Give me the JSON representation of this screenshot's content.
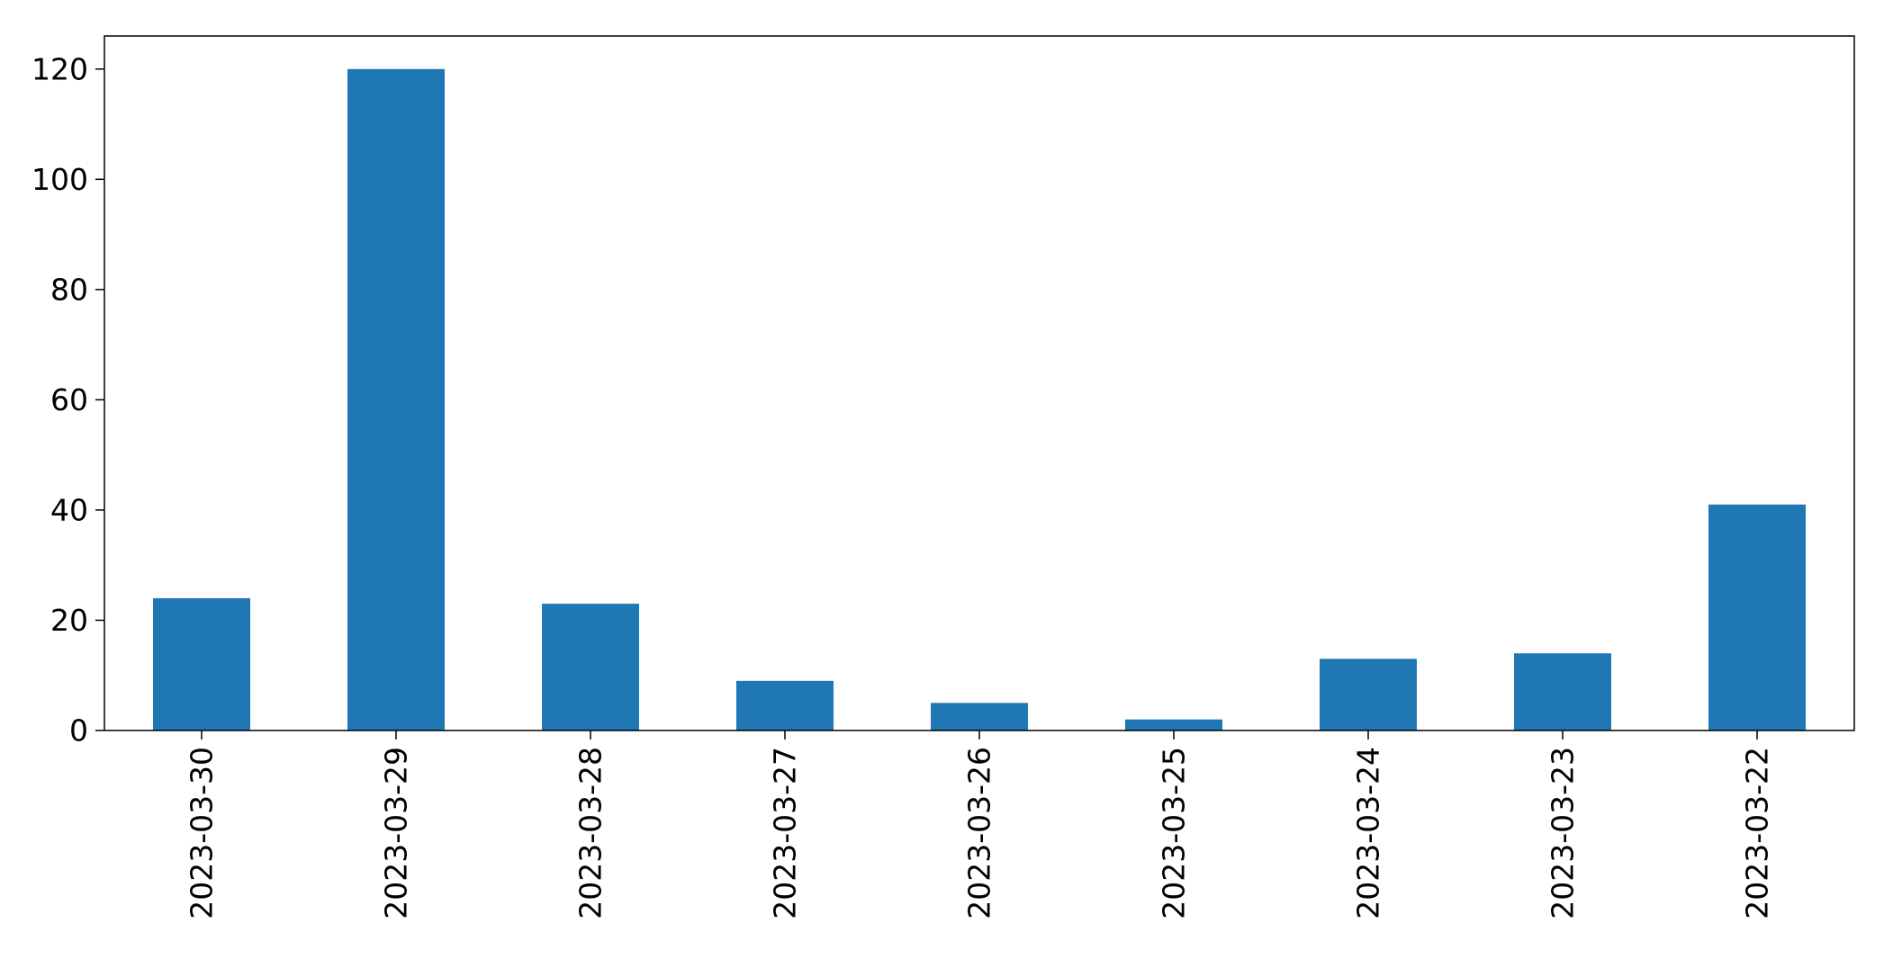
{
  "colors": {
    "bar": "#1f77b4",
    "axis": "#000000",
    "background": "#ffffff"
  },
  "chart_data": {
    "type": "bar",
    "title": "",
    "xlabel": "",
    "ylabel": "",
    "categories": [
      "2023-03-30",
      "2023-03-29",
      "2023-03-28",
      "2023-03-27",
      "2023-03-26",
      "2023-03-25",
      "2023-03-24",
      "2023-03-23",
      "2023-03-22"
    ],
    "values": [
      24,
      120,
      23,
      9,
      5,
      2,
      13,
      14,
      41
    ],
    "ylim": [
      0,
      126
    ],
    "yticks": [
      0,
      20,
      40,
      60,
      80,
      100,
      120
    ],
    "ytick_labels": [
      "0",
      "20",
      "40",
      "60",
      "80",
      "100",
      "120"
    ],
    "grid": false,
    "legend": "none",
    "xtick_rotation": "vertical"
  }
}
